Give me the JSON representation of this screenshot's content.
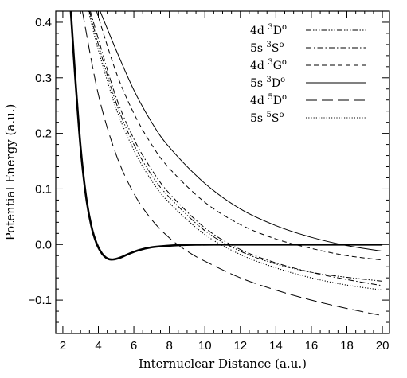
{
  "chart_data": {
    "type": "line",
    "xlabel": "Internuclear Distance (a.u.)",
    "ylabel": "Potential Energy (a.u.)",
    "xlim": [
      1.6,
      20.4
    ],
    "ylim": [
      -0.16,
      0.42
    ],
    "x_ticks": [
      2,
      4,
      6,
      8,
      10,
      12,
      14,
      16,
      18,
      20
    ],
    "x_tick_labels": [
      "2",
      "4",
      "6",
      "8",
      "10",
      "12",
      "14",
      "16",
      "18",
      "20"
    ],
    "y_ticks": [
      -0.1,
      0.0,
      0.1,
      0.2,
      0.3,
      0.4
    ],
    "y_tick_labels": [
      "−0.1",
      "0.0",
      "0.1",
      "0.2",
      "0.3",
      "0.4"
    ],
    "grid": false,
    "legend_position": "top-right",
    "series": [
      {
        "prefix": "4d",
        "sup": "3",
        "term": "D",
        "parity": "o",
        "style": "dash-dot-dot-dot",
        "x": [
          3.5,
          4,
          5,
          6,
          7,
          8,
          10,
          12,
          14,
          16,
          18,
          20
        ],
        "y": [
          0.42,
          0.36,
          0.255,
          0.18,
          0.125,
          0.085,
          0.025,
          -0.012,
          -0.035,
          -0.05,
          -0.059,
          -0.066
        ]
      },
      {
        "prefix": "5s",
        "sup": "3",
        "term": "S",
        "parity": "o",
        "style": "dash-dot",
        "x": [
          3.55,
          4,
          5,
          6,
          7,
          8,
          10,
          12,
          14,
          16,
          18,
          20
        ],
        "y": [
          0.42,
          0.37,
          0.265,
          0.19,
          0.135,
          0.092,
          0.03,
          -0.009,
          -0.033,
          -0.05,
          -0.063,
          -0.074
        ]
      },
      {
        "prefix": "4d",
        "sup": "3",
        "term": "G",
        "parity": "o",
        "style": "dashed",
        "x": [
          3.9,
          5,
          6,
          7,
          8,
          10,
          12,
          14,
          16,
          18,
          20
        ],
        "y": [
          0.42,
          0.31,
          0.236,
          0.18,
          0.137,
          0.076,
          0.036,
          0.01,
          -0.007,
          -0.02,
          -0.028
        ]
      },
      {
        "prefix": "5s",
        "sup": "3",
        "term": "D",
        "parity": "o",
        "style": "solid",
        "x": [
          4.1,
          5,
          6,
          7,
          8,
          10,
          12,
          14,
          16,
          18,
          20
        ],
        "y": [
          0.42,
          0.35,
          0.278,
          0.22,
          0.175,
          0.11,
          0.064,
          0.034,
          0.013,
          -0.002,
          -0.012
        ]
      },
      {
        "prefix": "4d",
        "sup": "5",
        "term": "D",
        "parity": "o",
        "style": "long-dash",
        "x": [
          3.1,
          4,
          5,
          6,
          7,
          8,
          9,
          10,
          12,
          14,
          16,
          18,
          20
        ],
        "y": [
          0.42,
          0.27,
          0.162,
          0.092,
          0.045,
          0.012,
          -0.012,
          -0.03,
          -0.06,
          -0.082,
          -0.1,
          -0.115,
          -0.128
        ]
      },
      {
        "prefix": "5s",
        "sup": "5",
        "term": "S",
        "parity": "o",
        "style": "dotted",
        "x": [
          3.45,
          4,
          5,
          6,
          7,
          8,
          10,
          12,
          14,
          16,
          18,
          20
        ],
        "y": [
          0.42,
          0.35,
          0.245,
          0.17,
          0.115,
          0.075,
          0.018,
          -0.018,
          -0.042,
          -0.06,
          -0.073,
          -0.082
        ]
      },
      {
        "prefix": "",
        "sup": "",
        "term": "",
        "parity": "",
        "style": "bold-solid",
        "x": [
          2.45,
          2.7,
          3.0,
          3.3,
          3.6,
          3.9,
          4.2,
          4.5,
          4.8,
          5.2,
          5.7,
          6.3,
          7.0,
          7.8,
          8.6,
          9.5,
          10.5,
          12,
          14,
          16,
          18,
          20
        ],
        "y": [
          0.42,
          0.3,
          0.175,
          0.088,
          0.034,
          0.002,
          -0.016,
          -0.025,
          -0.027,
          -0.024,
          -0.017,
          -0.01,
          -0.005,
          -0.0025,
          -0.001,
          -0.0003,
          0.0,
          0.0,
          0.0,
          0.0,
          0.0,
          0.0
        ]
      }
    ]
  }
}
